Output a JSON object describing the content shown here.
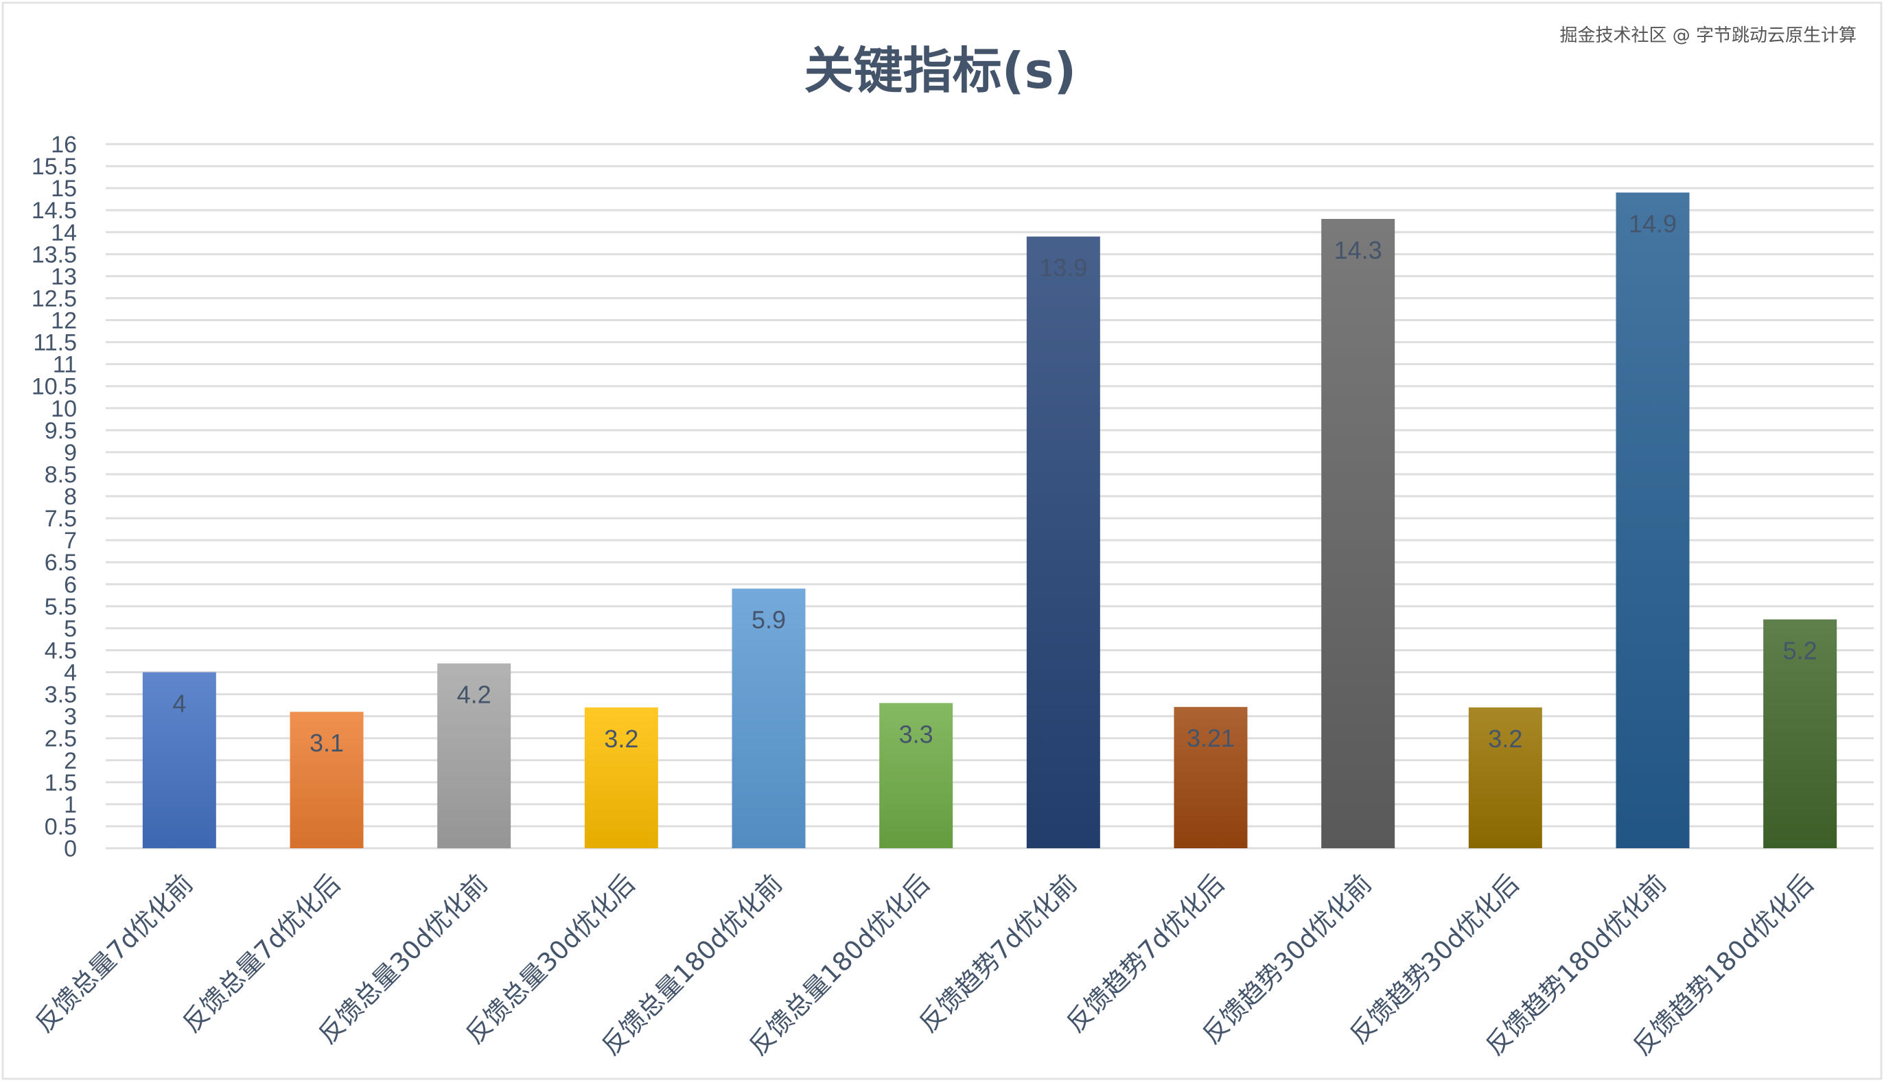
{
  "chart_data": {
    "type": "bar",
    "title": "关键指标(s)",
    "xlabel": "",
    "ylabel": "",
    "ylim": [
      0,
      16
    ],
    "ytick_step": 0.5,
    "grid": true,
    "legend": "none",
    "categories": [
      "反馈总量7d优化前",
      "反馈总量7d优化后",
      "反馈总量30d优化前",
      "反馈总量30d优化后",
      "反馈总量180d优化前",
      "反馈总量180d优化后",
      "反馈趋势7d优化前",
      "反馈趋势7d优化后",
      "反馈趋势30d优化前",
      "反馈趋势30d优化后",
      "反馈趋势180d优化前",
      "反馈趋势180d优化后"
    ],
    "values": [
      4,
      3.1,
      4.2,
      3.2,
      5.9,
      3.3,
      13.9,
      3.21,
      14.3,
      3.2,
      14.9,
      5.2
    ],
    "data_labels": [
      "4",
      "3.1",
      "4.2",
      "3.2",
      "5.9",
      "3.3",
      "13.9",
      "3.21",
      "14.3",
      "3.2",
      "14.9",
      "5.2"
    ],
    "colors": [
      "#4472c4",
      "#ed7d31",
      "#a5a5a5",
      "#ffc000",
      "#5b9bd5",
      "#70ad47",
      "#264478",
      "#9e480e",
      "#636363",
      "#997300",
      "#255e91",
      "#43682b"
    ]
  },
  "watermark": "掘金技术社区 @ 字节跳动云原生计算"
}
